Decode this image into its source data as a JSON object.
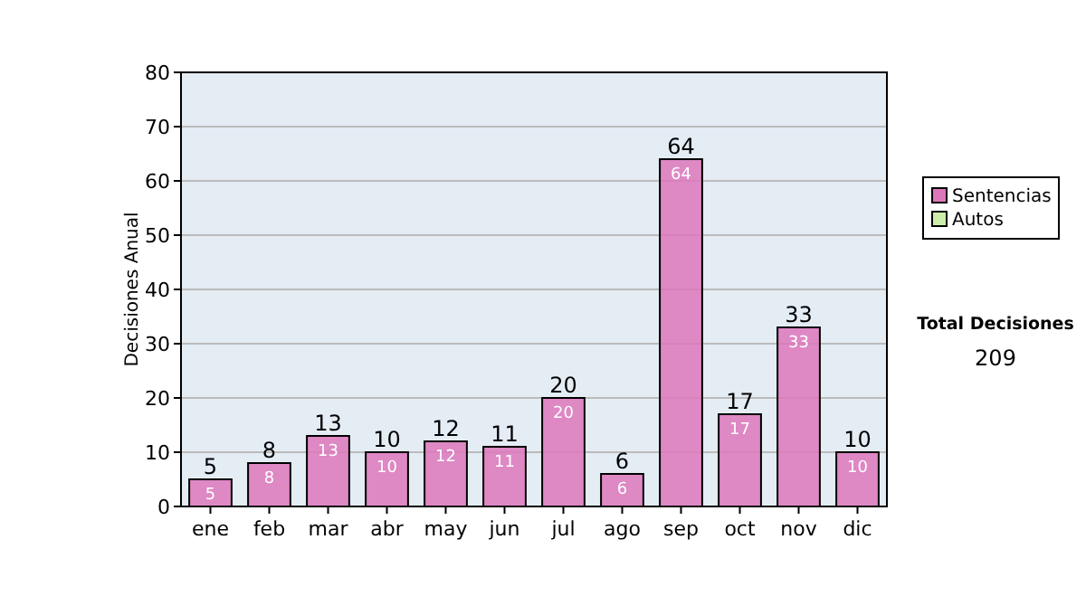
{
  "chart_data": {
    "type": "bar",
    "ylabel": "Decisiones Anual",
    "categories": [
      "ene",
      "feb",
      "mar",
      "abr",
      "may",
      "jun",
      "jul",
      "ago",
      "sep",
      "oct",
      "nov",
      "dic"
    ],
    "series": [
      {
        "name": "Sentencias",
        "color": "#dd77bb",
        "values": [
          5,
          8,
          13,
          10,
          12,
          11,
          20,
          6,
          64,
          17,
          33,
          10
        ],
        "value_labels": [
          "5",
          "8",
          "13",
          "10",
          "12",
          "11",
          "20",
          "6",
          "64",
          "17",
          "33",
          "10"
        ]
      },
      {
        "name": "Autos",
        "color": "#cceeaa",
        "values": [
          0,
          0,
          0,
          0,
          0,
          0,
          0,
          0,
          0,
          0,
          0,
          0
        ]
      }
    ],
    "totals": [
      "5",
      "8",
      "13",
      "10",
      "12",
      "11",
      "20",
      "6",
      "64",
      "17",
      "33",
      "10"
    ],
    "ylim": [
      0,
      80
    ],
    "yticks": [
      0,
      10,
      20,
      30,
      40,
      50,
      60,
      70,
      80
    ],
    "grid": "y",
    "legend": "right",
    "annotations": [
      "Total Decisiones",
      "209"
    ]
  }
}
